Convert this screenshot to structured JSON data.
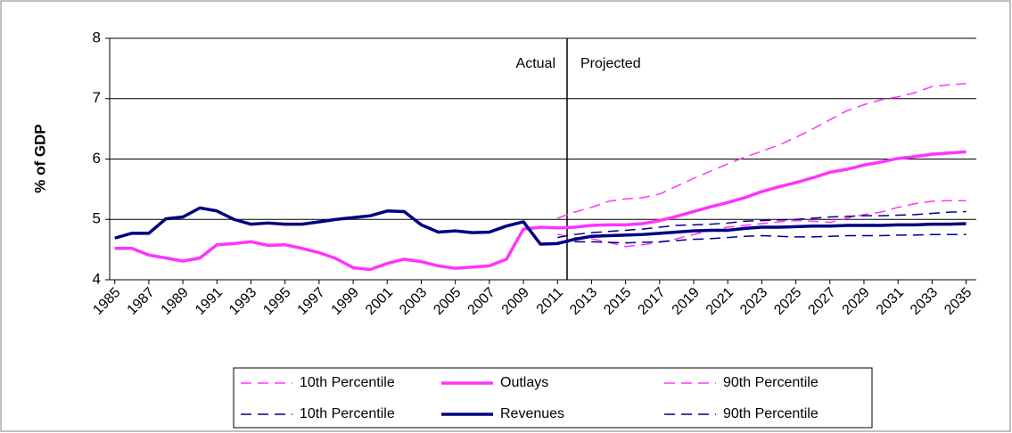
{
  "chart_data": {
    "type": "line",
    "y_label": "% of GDP",
    "annotations": [
      "Actual",
      "Projected"
    ],
    "x": [
      1985,
      1986,
      1987,
      1988,
      1989,
      1990,
      1991,
      1992,
      1993,
      1994,
      1995,
      1996,
      1997,
      1998,
      1999,
      2000,
      2001,
      2002,
      2003,
      2004,
      2005,
      2006,
      2007,
      2008,
      2009,
      2010,
      2011,
      2012,
      2013,
      2014,
      2015,
      2016,
      2017,
      2018,
      2019,
      2020,
      2021,
      2022,
      2023,
      2024,
      2025,
      2026,
      2027,
      2028,
      2029,
      2030,
      2031,
      2032,
      2033,
      2034,
      2035
    ],
    "xlim": [
      1984.7,
      2035.6
    ],
    "xticks": [
      1985,
      1987,
      1989,
      1991,
      1993,
      1995,
      1997,
      1999,
      2001,
      2003,
      2005,
      2007,
      2009,
      2011,
      2013,
      2015,
      2017,
      2019,
      2021,
      2023,
      2025,
      2027,
      2029,
      2031,
      2033,
      2035
    ],
    "ylim": [
      4,
      8
    ],
    "yticks": [
      4,
      5,
      6,
      7,
      8
    ],
    "grid": true,
    "series": [
      {
        "name": "10th Percentile",
        "color": "#ff33ff",
        "dashed": true,
        "values": [
          null,
          null,
          null,
          null,
          null,
          null,
          null,
          null,
          null,
          null,
          null,
          null,
          null,
          null,
          null,
          null,
          null,
          null,
          null,
          null,
          null,
          null,
          null,
          null,
          null,
          null,
          4.75,
          4.7,
          4.68,
          4.62,
          4.55,
          4.58,
          4.62,
          4.68,
          4.75,
          4.82,
          4.87,
          4.9,
          4.93,
          4.96,
          4.98,
          4.97,
          4.95,
          5.02,
          5.08,
          5.12,
          5.2,
          5.26,
          5.3,
          5.31,
          5.31
        ]
      },
      {
        "name": "Outlays",
        "color": "#ff33ff",
        "dashed": false,
        "values": [
          4.52,
          4.52,
          4.41,
          4.36,
          4.31,
          4.36,
          4.58,
          4.6,
          4.63,
          4.57,
          4.58,
          4.52,
          4.45,
          4.35,
          4.2,
          4.17,
          4.27,
          4.34,
          4.3,
          4.23,
          4.19,
          4.21,
          4.23,
          4.34,
          4.84,
          4.87,
          4.86,
          4.87,
          4.9,
          4.91,
          4.91,
          4.93,
          4.98,
          5.05,
          5.13,
          5.21,
          5.28,
          5.36,
          5.46,
          5.54,
          5.61,
          5.69,
          5.78,
          5.83,
          5.9,
          5.95,
          6.01,
          6.04,
          6.08,
          6.1,
          6.12
        ]
      },
      {
        "name": "90th Percentile",
        "color": "#ff33ff",
        "dashed": true,
        "values": [
          null,
          null,
          null,
          null,
          null,
          null,
          null,
          null,
          null,
          null,
          null,
          null,
          null,
          null,
          null,
          null,
          null,
          null,
          null,
          null,
          null,
          null,
          null,
          null,
          null,
          null,
          5.02,
          5.12,
          5.2,
          5.3,
          5.34,
          5.36,
          5.42,
          5.55,
          5.68,
          5.8,
          5.92,
          6.03,
          6.13,
          6.23,
          6.36,
          6.5,
          6.65,
          6.8,
          6.9,
          6.98,
          7.03,
          7.1,
          7.2,
          7.23,
          7.25
        ]
      },
      {
        "name": "10th Percentile",
        "color": "#000080",
        "dashed": true,
        "values": [
          null,
          null,
          null,
          null,
          null,
          null,
          null,
          null,
          null,
          null,
          null,
          null,
          null,
          null,
          null,
          null,
          null,
          null,
          null,
          null,
          null,
          null,
          null,
          null,
          null,
          null,
          4.62,
          4.63,
          4.63,
          4.62,
          4.61,
          4.62,
          4.63,
          4.65,
          4.67,
          4.68,
          4.7,
          4.72,
          4.73,
          4.72,
          4.71,
          4.71,
          4.72,
          4.73,
          4.73,
          4.73,
          4.74,
          4.74,
          4.75,
          4.75,
          4.75
        ]
      },
      {
        "name": "Revenues",
        "color": "#000080",
        "dashed": false,
        "values": [
          4.69,
          4.77,
          4.77,
          5.01,
          5.04,
          5.19,
          5.14,
          5.0,
          4.92,
          4.94,
          4.92,
          4.92,
          4.96,
          5.0,
          5.03,
          5.06,
          5.14,
          5.13,
          4.91,
          4.79,
          4.81,
          4.78,
          4.79,
          4.89,
          4.96,
          4.59,
          4.6,
          4.67,
          4.72,
          4.73,
          4.74,
          4.75,
          4.77,
          4.79,
          4.81,
          4.82,
          4.82,
          4.85,
          4.87,
          4.87,
          4.88,
          4.89,
          4.89,
          4.9,
          4.9,
          4.9,
          4.91,
          4.91,
          4.92,
          4.92,
          4.93
        ]
      },
      {
        "name": "90th Percentile",
        "color": "#000080",
        "dashed": true,
        "values": [
          null,
          null,
          null,
          null,
          null,
          null,
          null,
          null,
          null,
          null,
          null,
          null,
          null,
          null,
          null,
          null,
          null,
          null,
          null,
          null,
          null,
          null,
          null,
          null,
          null,
          null,
          4.7,
          4.75,
          4.78,
          4.8,
          4.82,
          4.84,
          4.87,
          4.9,
          4.91,
          4.92,
          4.94,
          4.97,
          4.98,
          4.99,
          5.0,
          5.02,
          5.04,
          5.05,
          5.06,
          5.06,
          5.07,
          5.08,
          5.1,
          5.12,
          5.13
        ]
      }
    ]
  }
}
